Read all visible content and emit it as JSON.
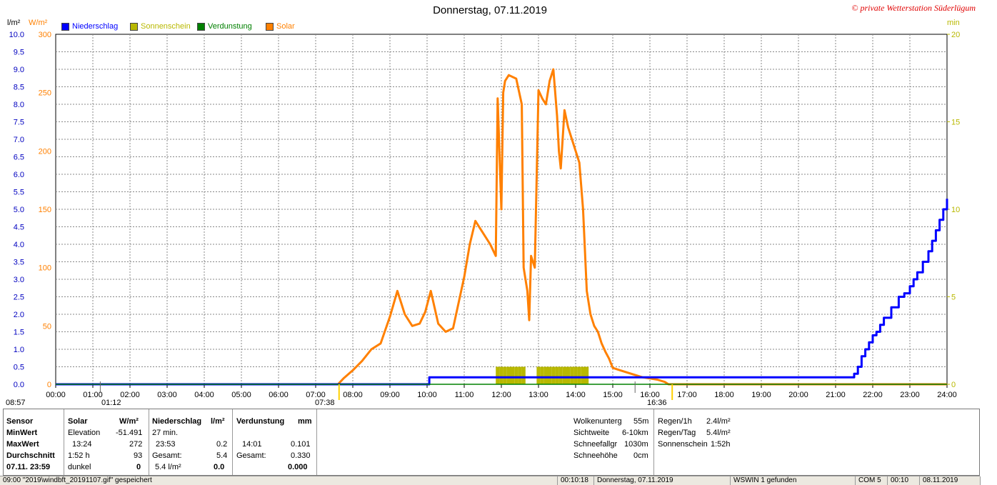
{
  "title": "Donnerstag, 07.11.2019",
  "copyright": "© private Wetterstation Süderlügum",
  "units": {
    "rain": "l/m²",
    "solar": "W/m²",
    "minutes": "min"
  },
  "legend": [
    {
      "label": "Niederschlag",
      "color": "#0000ff"
    },
    {
      "label": "Sonnenschein",
      "color": "#b8b800"
    },
    {
      "label": "Verdunstung",
      "color": "#008000"
    },
    {
      "label": "Solar",
      "color": "#ff8000"
    }
  ],
  "markers": {
    "moon_left": "08:57",
    "moon_time": "01:12",
    "sunrise": "07:38",
    "sunset": "16:36"
  },
  "chart_data": {
    "type": "line",
    "xlabel": "",
    "xlim": [
      0,
      24
    ],
    "x_ticks": [
      "00:00",
      "01:00",
      "02:00",
      "03:00",
      "04:00",
      "05:00",
      "06:00",
      "07:00",
      "08:00",
      "09:00",
      "10:00",
      "11:00",
      "12:00",
      "13:00",
      "14:00",
      "15:00",
      "16:00",
      "17:00",
      "18:00",
      "19:00",
      "20:00",
      "21:00",
      "22:00",
      "23:00",
      "24:00"
    ],
    "y_left_rain": {
      "label": "l/m²",
      "ylim": [
        0,
        10
      ],
      "ticks": [
        "0.0",
        "0.5",
        "1.0",
        "1.5",
        "2.0",
        "2.5",
        "3.0",
        "3.5",
        "4.0",
        "4.5",
        "5.0",
        "5.5",
        "6.0",
        "6.5",
        "7.0",
        "7.5",
        "8.0",
        "8.5",
        "9.0",
        "9.5",
        "10.0"
      ]
    },
    "y_left_solar": {
      "label": "W/m²",
      "ylim": [
        0,
        300
      ],
      "ticks": [
        "0",
        "50",
        "100",
        "150",
        "200",
        "250",
        "300"
      ]
    },
    "y_right_minutes": {
      "label": "min",
      "ylim": [
        0,
        20
      ],
      "ticks": [
        "0",
        "5",
        "10",
        "15",
        "20"
      ]
    },
    "grid": true,
    "series": [
      {
        "name": "Solar",
        "axis": "solar",
        "color": "#ff8000",
        "x": [
          0,
          7.6,
          7.75,
          8.0,
          8.25,
          8.5,
          8.75,
          9.0,
          9.2,
          9.4,
          9.6,
          9.8,
          9.95,
          10.1,
          10.3,
          10.5,
          10.7,
          11.0,
          11.15,
          11.3,
          11.5,
          11.7,
          11.85,
          11.9,
          12.0,
          12.05,
          12.1,
          12.2,
          12.4,
          12.55,
          12.6,
          12.7,
          12.75,
          12.8,
          12.9,
          13.0,
          13.1,
          13.2,
          13.3,
          13.4,
          13.5,
          13.55,
          13.6,
          13.7,
          13.8,
          13.9,
          14.0,
          14.1,
          14.2,
          14.3,
          14.4,
          14.45,
          14.5,
          14.6,
          14.7,
          14.8,
          14.9,
          15.0,
          15.2,
          15.4,
          15.6,
          15.8,
          16.0,
          16.2,
          16.4,
          16.5,
          16.6,
          24
        ],
        "y": [
          0,
          0,
          5,
          12,
          20,
          30,
          35,
          58,
          80,
          60,
          50,
          52,
          62,
          80,
          52,
          45,
          48,
          92,
          120,
          140,
          130,
          120,
          110,
          245,
          150,
          250,
          260,
          265,
          262,
          240,
          100,
          80,
          55,
          110,
          100,
          252,
          245,
          240,
          260,
          270,
          230,
          200,
          185,
          235,
          220,
          210,
          200,
          190,
          150,
          80,
          60,
          55,
          50,
          45,
          35,
          28,
          22,
          14,
          12,
          10,
          8,
          6,
          5,
          4,
          2,
          0,
          0,
          0
        ]
      },
      {
        "name": "Niederschlag",
        "axis": "rain",
        "color": "#0000ff",
        "x": [
          0,
          10.05,
          10.06,
          21.45,
          21.5,
          21.6,
          21.7,
          21.8,
          21.9,
          22.0,
          22.1,
          22.2,
          22.3,
          22.5,
          22.7,
          22.85,
          23.0,
          23.1,
          23.2,
          23.35,
          23.5,
          23.6,
          23.7,
          23.8,
          23.9,
          24.0
        ],
        "y": [
          0,
          0,
          0.2,
          0.2,
          0.3,
          0.5,
          0.8,
          1.0,
          1.2,
          1.4,
          1.5,
          1.7,
          1.9,
          2.2,
          2.5,
          2.6,
          2.8,
          3.0,
          3.2,
          3.5,
          3.8,
          4.1,
          4.4,
          4.7,
          5.0,
          5.3
        ]
      },
      {
        "name": "Verdunstung",
        "axis": "rain",
        "color": "#008000",
        "x": [
          0,
          24
        ],
        "y": [
          0,
          0
        ]
      },
      {
        "name": "Sonnenschein",
        "axis": "minutes",
        "type": "bar",
        "color": "#b8b800",
        "x": [
          11.85,
          11.95,
          12.05,
          12.15,
          12.25,
          12.35,
          12.45,
          12.55,
          12.95,
          13.05,
          13.15,
          13.25,
          13.35,
          13.45,
          13.55,
          13.65,
          13.75,
          13.85,
          13.95,
          14.05,
          14.15,
          14.25
        ],
        "y": [
          1,
          1,
          1,
          1,
          1,
          1,
          1,
          1,
          1,
          1,
          1,
          1,
          1,
          1,
          1,
          1,
          1,
          1,
          1,
          1,
          1,
          1
        ]
      }
    ]
  },
  "panel": {
    "sensor": {
      "head": "Sensor",
      "min": "MinWert",
      "max": "MaxWert",
      "avg": "Durchschnitt",
      "date": "07.11. 23:59"
    },
    "solar": {
      "head": "Solar",
      "unit": "W/m²",
      "r1a": "Elevation",
      "r1b": "-51.491",
      "r2a": "13:24",
      "r2b": "272",
      "r3a": "1:52 h",
      "r3b": "93",
      "r4a": "dunkel",
      "r4b": "0"
    },
    "rain": {
      "head": "Niederschlag",
      "unit": "l/m²",
      "r1a": "27 min.",
      "r1b": "",
      "r2a": "23:53",
      "r2b": "0.2",
      "r3a": "Gesamt:",
      "r3b": "5.4",
      "r4a": "5.4 l/m²",
      "r4b": "0.0"
    },
    "evap": {
      "head": "Verdunstung",
      "unit": "mm",
      "r2a": "14:01",
      "r2b": "0.101",
      "r3a": "Gesamt:",
      "r3b": "0.330",
      "r4b": "0.000"
    },
    "weather": [
      {
        "label": "Wolkenunterg",
        "value": "55m"
      },
      {
        "label": "Sichtweite",
        "value": "6-10km"
      },
      {
        "label": "Schneefallgr",
        "value": "1030m"
      },
      {
        "label": "Schneehöhe",
        "value": "0cm"
      }
    ],
    "rainstat": [
      {
        "label": "Regen/1h",
        "value": "2.4l/m²"
      },
      {
        "label": "Regen/Tag",
        "value": "5.4l/m²"
      },
      {
        "label": "Sonnenschein",
        "value": "1:52h"
      }
    ]
  },
  "status": {
    "s1": "09:00 \"2019\\windbft_20191107.gif\" gespeichert",
    "s2": "00:10:18",
    "s3": "Donnerstag, 07.11.2019",
    "s4": "WSWIN 1 gefunden",
    "s5": "COM 5",
    "s6": "00:10",
    "s7": "08.11.2019"
  }
}
